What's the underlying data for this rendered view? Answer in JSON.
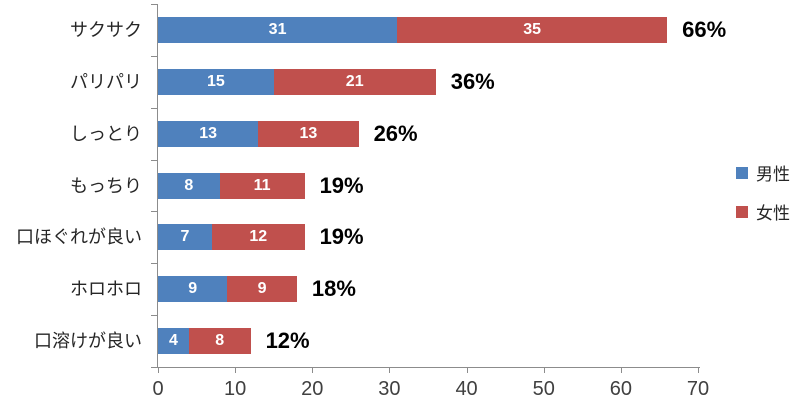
{
  "chart_data": {
    "type": "bar",
    "orientation": "horizontal",
    "stacked": true,
    "title": "",
    "xlabel": "",
    "ylabel": "",
    "categories": [
      "サクサク",
      "パリパリ",
      "しっとり",
      "もっちり",
      "口ほぐれが良い",
      "ホロホロ",
      "口溶けが良い"
    ],
    "series": [
      {
        "name": "男性",
        "color": "#4F81BD",
        "values": [
          31,
          15,
          13,
          8,
          7,
          9,
          4
        ]
      },
      {
        "name": "女性",
        "color": "#C0504D",
        "values": [
          35,
          21,
          13,
          11,
          12,
          9,
          8
        ]
      }
    ],
    "total_labels": [
      "66%",
      "36%",
      "26%",
      "19%",
      "19%",
      "18%",
      "12%"
    ],
    "x_ticks": [
      "0",
      "10",
      "20",
      "30",
      "40",
      "50",
      "60",
      "70"
    ],
    "xlim": [
      0,
      70
    ],
    "grid": false,
    "legend_position": "right"
  },
  "colors": {
    "male_bar": "#4F81BD",
    "female_bar": "#C0504D",
    "axis": "#8C8C8C",
    "x_tick_label": "#404040",
    "category_label": "#262626",
    "total_label": "#000000",
    "bar_value_label": "#FFFFFF",
    "background": "#FFFFFF"
  }
}
